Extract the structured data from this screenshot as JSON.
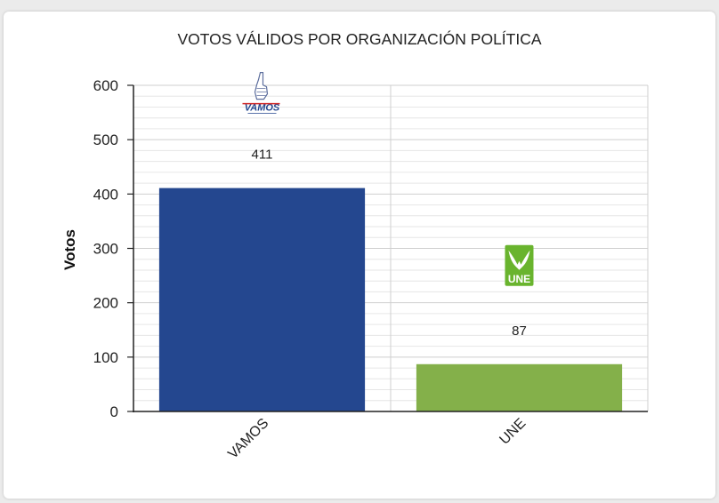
{
  "chart_data": {
    "type": "bar",
    "title": "VOTOS VÁLIDOS POR ORGANIZACIÓN POLÍTICA",
    "xlabel": "",
    "ylabel": "Votos",
    "ylim": [
      0,
      600
    ],
    "yticks": [
      0,
      100,
      200,
      300,
      400,
      500,
      600
    ],
    "categories": [
      "VAMOS",
      "UNE"
    ],
    "values": [
      411,
      87
    ],
    "colors": [
      "#24478f",
      "#84b04a"
    ],
    "logos": [
      "VAMOS",
      "UNE"
    ],
    "grid": true,
    "legend": "none"
  }
}
